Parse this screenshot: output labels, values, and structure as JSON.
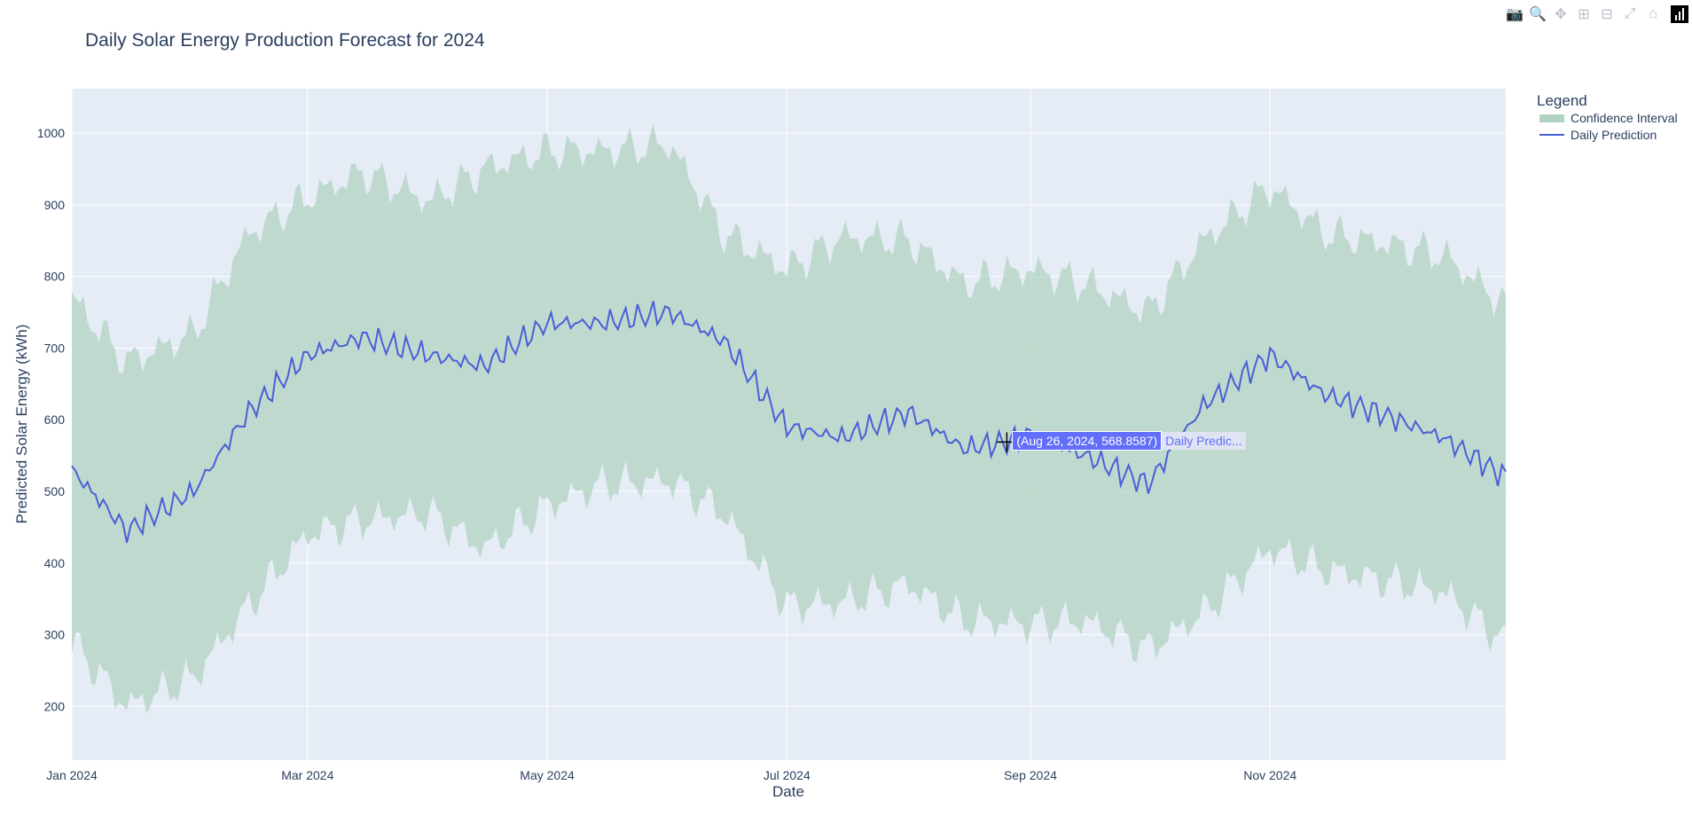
{
  "toolbar": {
    "buttons": [
      {
        "name": "camera-icon",
        "glyph": "📷"
      },
      {
        "name": "zoom-icon",
        "glyph": "🔍"
      },
      {
        "name": "pan-icon",
        "glyph": "✥"
      },
      {
        "name": "zoom-in-icon",
        "glyph": "⊞"
      },
      {
        "name": "zoom-out-icon",
        "glyph": "⊟"
      },
      {
        "name": "autoscale-icon",
        "glyph": "⤢"
      },
      {
        "name": "reset-axes-icon",
        "glyph": "⌂"
      }
    ],
    "active": "zoom-icon"
  },
  "hover": {
    "value_text": "(Aug 26, 2024, 568.8587)",
    "series_text": "Daily Predic...",
    "x": "2024-08-26",
    "y": 568.8587
  },
  "colors": {
    "plot_bg": "#e5ecf6",
    "grid": "#ffffff",
    "band": "#b2d3c2",
    "line": "#4a5fd6"
  },
  "chart_data": {
    "type": "line",
    "title": "Daily Solar Energy Production Forecast for 2024",
    "xlabel": "Date",
    "ylabel": "Predicted Solar Energy (kWh)",
    "xlim": [
      "2024-01-01",
      "2024-12-31"
    ],
    "ylim": [
      125,
      1062
    ],
    "x_ticks": [
      {
        "date": "2024-01-01",
        "label": "Jan 2024"
      },
      {
        "date": "2024-03-01",
        "label": "Mar 2024"
      },
      {
        "date": "2024-05-01",
        "label": "May 2024"
      },
      {
        "date": "2024-07-01",
        "label": "Jul 2024"
      },
      {
        "date": "2024-09-01",
        "label": "Sep 2024"
      },
      {
        "date": "2024-11-01",
        "label": "Nov 2024"
      }
    ],
    "y_ticks": [
      200,
      300,
      400,
      500,
      600,
      700,
      800,
      900,
      1000
    ],
    "grid": true,
    "legend": {
      "title": "Legend",
      "placement": "right"
    },
    "series": [
      {
        "name": "Confidence Interval",
        "kind": "band",
        "x": [
          "2024-01-01",
          "2024-01-15",
          "2024-02-01",
          "2024-02-15",
          "2024-03-01",
          "2024-03-15",
          "2024-04-01",
          "2024-04-15",
          "2024-05-01",
          "2024-05-15",
          "2024-06-01",
          "2024-06-15",
          "2024-07-01",
          "2024-07-15",
          "2024-08-01",
          "2024-08-15",
          "2024-09-01",
          "2024-09-15",
          "2024-10-01",
          "2024-10-15",
          "2024-11-01",
          "2024-11-15",
          "2024-12-01",
          "2024-12-15",
          "2024-12-31"
        ],
        "upper": [
          770,
          680,
          720,
          860,
          910,
          945,
          905,
          950,
          975,
          975,
          985,
          860,
          810,
          855,
          850,
          790,
          810,
          790,
          750,
          850,
          925,
          860,
          845,
          830,
          760
        ],
        "lower": [
          290,
          200,
          240,
          340,
          440,
          460,
          470,
          420,
          480,
          510,
          515,
          470,
          340,
          345,
          370,
          320,
          315,
          320,
          280,
          330,
          420,
          390,
          375,
          360,
          290
        ]
      },
      {
        "name": "Daily Prediction",
        "kind": "line",
        "x": [
          "2024-01-01",
          "2024-01-15",
          "2024-02-01",
          "2024-02-15",
          "2024-03-01",
          "2024-03-15",
          "2024-04-01",
          "2024-04-15",
          "2024-05-01",
          "2024-05-15",
          "2024-06-01",
          "2024-06-15",
          "2024-07-01",
          "2024-07-15",
          "2024-08-01",
          "2024-08-15",
          "2024-08-26",
          "2024-09-01",
          "2024-09-15",
          "2024-10-01",
          "2024-10-15",
          "2024-11-01",
          "2024-11-15",
          "2024-12-01",
          "2024-12-15",
          "2024-12-31"
        ],
        "values": [
          530,
          445,
          500,
          610,
          690,
          715,
          690,
          675,
          735,
          735,
          750,
          710,
          590,
          575,
          610,
          560,
          569,
          580,
          550,
          510,
          620,
          690,
          635,
          605,
          575,
          520
        ]
      }
    ]
  }
}
